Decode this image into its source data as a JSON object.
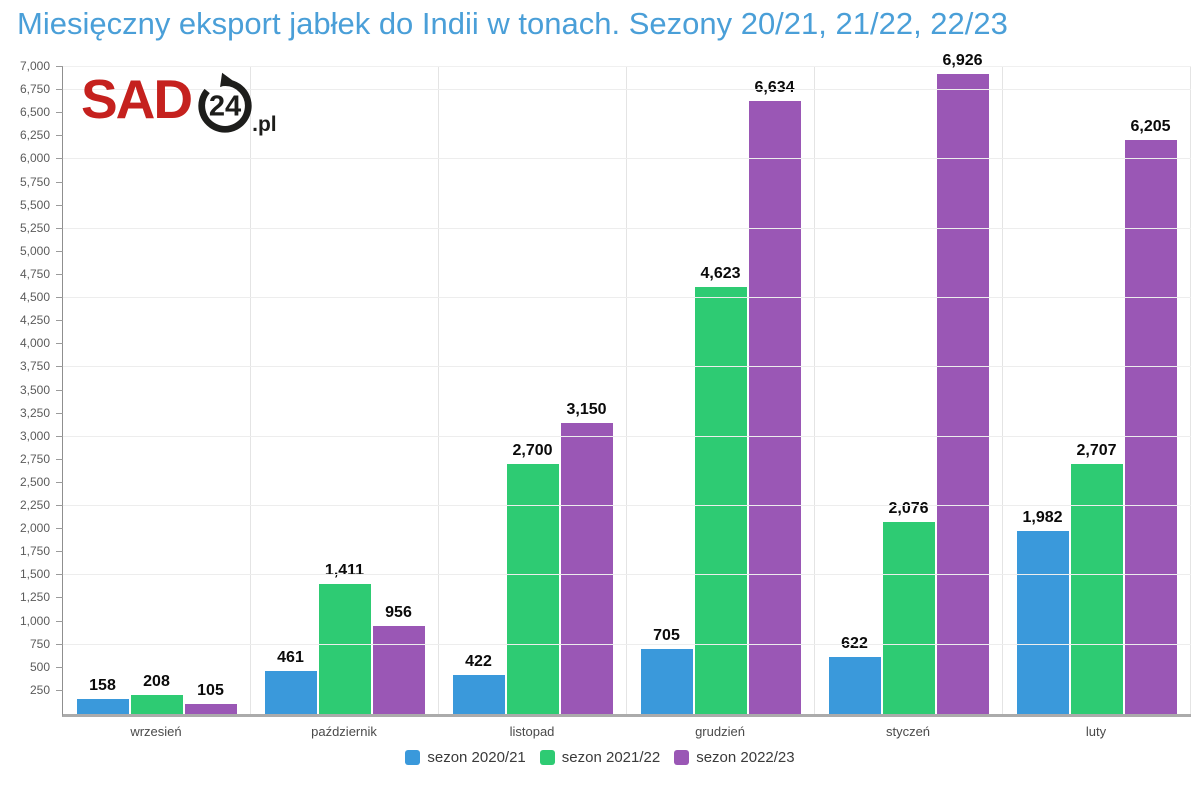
{
  "page": {
    "title": "Miesięczny eksport jabłek do Indii w tonach. Sezony 20/21, 21/22, 22/23",
    "title_color": "#4a9fd8"
  },
  "logo": {
    "brand": "SAD",
    "badge": "24",
    "tld": ".pl",
    "brand_color": "#c5211e",
    "dark_color": "#1d1d1b"
  },
  "chart_data": {
    "type": "bar",
    "title": "Miesięczny eksport jabłek do Indii w tonach. Sezony 20/21, 21/22, 22/23",
    "categories": [
      "wrzesień",
      "październik",
      "listopad",
      "grudzień",
      "styczeń",
      "luty"
    ],
    "series": [
      {
        "name": "sezon 2020/21",
        "color": "#3a99db",
        "values": [
          158,
          461,
          422,
          705,
          622,
          1982
        ]
      },
      {
        "name": "sezon 2021/22",
        "color": "#2ecb73",
        "values": [
          208,
          1411,
          2700,
          4623,
          2076,
          2707
        ]
      },
      {
        "name": "sezon 2022/23",
        "color": "#9a57b5",
        "values": [
          105,
          956,
          3150,
          6634,
          6926,
          6205
        ]
      }
    ],
    "xlabel": "",
    "ylabel": "",
    "ylim": [
      0,
      7000
    ],
    "ytick_step": 250,
    "gridline_step": 750,
    "grid": true,
    "value_labels": true,
    "legend_position": "bottom",
    "number_format": "thousands-comma"
  }
}
